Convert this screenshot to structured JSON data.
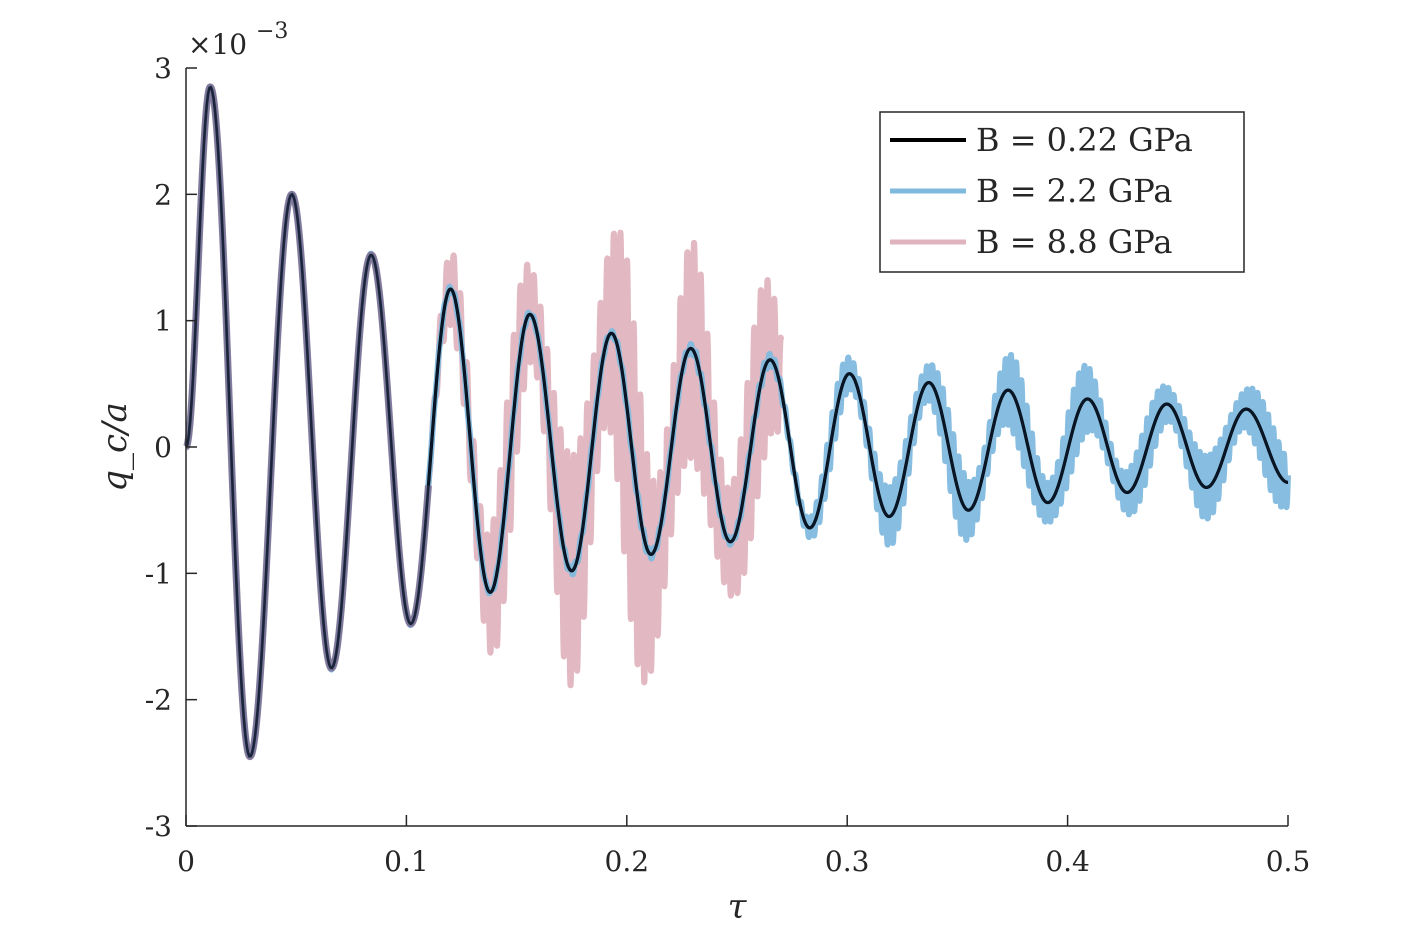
{
  "chart_data": {
    "type": "line",
    "xlabel": "τ",
    "ylabel": "q_c/a",
    "y_multiplier": "×10",
    "y_multiplier_exp": "−3",
    "xlim": [
      0,
      0.5
    ],
    "ylim": [
      -3,
      3
    ],
    "x_ticks": [
      0,
      0.1,
      0.2,
      0.3,
      0.4,
      0.5
    ],
    "x_tick_labels": [
      "0",
      "0.1",
      "0.2",
      "0.3",
      "0.4",
      "0.5"
    ],
    "y_ticks": [
      -3,
      -2,
      -1,
      0,
      1,
      2,
      3
    ],
    "y_tick_labels": [
      "-3",
      "-2",
      "-1",
      "0",
      "1",
      "2",
      "3"
    ],
    "grid": false,
    "legend_position": "top-right",
    "series": [
      {
        "name": "B = 0.22 GPa",
        "color": "#000000",
        "style": "thin line",
        "x_range": [
          0,
          0.5
        ],
        "peaks_x": [
          0,
          0.011,
          0.029,
          0.048,
          0.066,
          0.084,
          0.102,
          0.12,
          0.138,
          0.156,
          0.175,
          0.193,
          0.211,
          0.229,
          0.247,
          0.265,
          0.283,
          0.301,
          0.319,
          0.337,
          0.355,
          0.373,
          0.391,
          0.409,
          0.427,
          0.445,
          0.463,
          0.481,
          0.5
        ],
        "peaks_y": [
          0,
          2.85,
          -2.45,
          2.0,
          -1.75,
          1.52,
          -1.4,
          1.25,
          -1.15,
          1.05,
          -0.98,
          0.9,
          -0.85,
          0.78,
          -0.75,
          0.69,
          -0.64,
          0.58,
          -0.55,
          0.51,
          -0.5,
          0.45,
          -0.44,
          0.38,
          -0.36,
          0.34,
          -0.32,
          0.3,
          -0.28
        ]
      },
      {
        "name": "B = 2.2 GPa",
        "color": "#7fb9de",
        "style": "thick line with high-frequency oscillation band",
        "x_range": [
          0,
          0.5
        ],
        "band_half_width": [
          [
            0,
            0
          ],
          [
            0.27,
            0.05
          ],
          [
            0.3,
            0.2
          ],
          [
            0.36,
            0.3
          ],
          [
            0.4,
            0.32
          ],
          [
            0.42,
            0.22
          ],
          [
            0.5,
            0.28
          ]
        ]
      },
      {
        "name": "B = 8.8 GPa",
        "color": "#e0b4bf",
        "style": "thick line with high-frequency oscillation band",
        "x_range": [
          0,
          0.27
        ],
        "band_half_width": [
          [
            0,
            0
          ],
          [
            0.11,
            0.02
          ],
          [
            0.13,
            0.6
          ],
          [
            0.16,
            0.7
          ],
          [
            0.2,
            1.3
          ],
          [
            0.22,
            0.9
          ],
          [
            0.25,
            0.8
          ],
          [
            0.27,
            0.7
          ]
        ]
      }
    ]
  }
}
